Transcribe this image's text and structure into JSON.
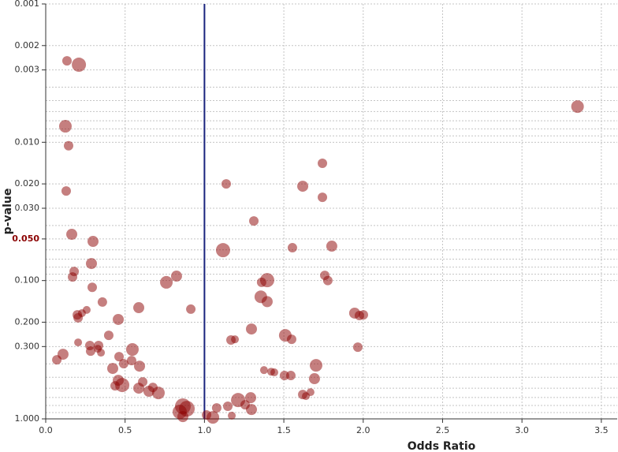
{
  "chart_data": {
    "type": "scatter",
    "x_label": "Odds Ratio",
    "y_label": "p-value",
    "log_y": true,
    "grid": true,
    "color": "#8b0000",
    "opacity": 0.5,
    "reference_line_x": 1,
    "reference_line_color": "#1a237e",
    "highlight_ytick": 0.05,
    "highlight_color": "#8b0000",
    "xlim": [
      0,
      3.6
    ],
    "ylim": [
      1,
      0.001
    ],
    "xticks": [
      {
        "value": 0,
        "label": "0.0"
      },
      {
        "value": 0.5,
        "label": "0.5"
      },
      {
        "value": 1,
        "label": "1.0"
      },
      {
        "value": 1.5,
        "label": "1.5"
      },
      {
        "value": 2,
        "label": "2.0"
      },
      {
        "value": 2.5,
        "label": "2.5"
      },
      {
        "value": 3,
        "label": "3.0"
      },
      {
        "value": 3.5,
        "label": "3.5"
      }
    ],
    "yticks": [
      {
        "value": 0.001,
        "label": "0.001"
      },
      {
        "value": 0.002,
        "label": "0.002"
      },
      {
        "value": 0.003,
        "label": "0.003"
      },
      {
        "value": 0.01,
        "label": "0.010"
      },
      {
        "value": 0.02,
        "label": "0.020"
      },
      {
        "value": 0.03,
        "label": "0.030"
      },
      {
        "value": 0.05,
        "label": "0.050"
      },
      {
        "value": 0.1,
        "label": "0.100"
      },
      {
        "value": 0.2,
        "label": "0.200"
      },
      {
        "value": 0.3,
        "label": "0.300"
      },
      {
        "value": 1,
        "label": "1.000"
      }
    ],
    "minor_yticks": [
      0.004,
      0.005,
      0.006,
      0.007,
      0.008,
      0.009,
      0.04,
      0.06,
      0.07,
      0.08,
      0.09,
      0.4,
      0.5,
      0.6,
      0.7,
      0.8,
      0.9
    ],
    "x": [
      0.134,
      0.209,
      3.35,
      0.124,
      0.144,
      1.743,
      1.137,
      1.619,
      0.129,
      1.743,
      1.311,
      0.164,
      0.298,
      1.117,
      1.554,
      1.802,
      0.288,
      0.179,
      0.169,
      0.824,
      0.76,
      1.758,
      1.777,
      1.36,
      1.395,
      0.293,
      1.355,
      1.395,
      0.357,
      0.586,
      0.914,
      0.258,
      0.228,
      0.199,
      0.204,
      1.946,
      1.976,
      2.001,
      0.457,
      1.296,
      0.397,
      1.509,
      1.549,
      1.167,
      1.192,
      0.204,
      0.546,
      0.278,
      0.333,
      0.283,
      0.328,
      0.348,
      1.966,
      0.109,
      0.07,
      0.462,
      0.541,
      0.491,
      0.422,
      0.591,
      1.703,
      1.375,
      1.42,
      1.44,
      1.504,
      1.544,
      1.693,
      0.457,
      0.482,
      0.611,
      0.437,
      0.586,
      0.65,
      0.71,
      0.675,
      1.619,
      1.668,
      1.639,
      1.291,
      1.212,
      1.256,
      1.147,
      1.077,
      1.296,
      0.864,
      0.889,
      0.844,
      0.864,
      1.013,
      1.053,
      1.172
    ],
    "values": [
      0.00258,
      0.00275,
      0.00552,
      0.00766,
      0.0106,
      0.0142,
      0.02,
      0.0208,
      0.0225,
      0.025,
      0.0371,
      0.0463,
      0.0521,
      0.0603,
      0.0579,
      0.0564,
      0.0753,
      0.0859,
      0.0942,
      0.0929,
      0.103,
      0.0917,
      0.1,
      0.103,
      0.0993,
      0.112,
      0.131,
      0.142,
      0.143,
      0.157,
      0.161,
      0.163,
      0.172,
      0.177,
      0.186,
      0.172,
      0.179,
      0.177,
      0.191,
      0.224,
      0.249,
      0.249,
      0.266,
      0.269,
      0.266,
      0.28,
      0.315,
      0.295,
      0.295,
      0.324,
      0.311,
      0.332,
      0.303,
      0.341,
      0.374,
      0.355,
      0.379,
      0.399,
      0.432,
      0.416,
      0.41,
      0.444,
      0.456,
      0.461,
      0.486,
      0.486,
      0.512,
      0.526,
      0.569,
      0.54,
      0.577,
      0.6,
      0.632,
      0.649,
      0.592,
      0.667,
      0.641,
      0.684,
      0.703,
      0.731,
      0.791,
      0.811,
      0.833,
      0.856,
      0.811,
      0.845,
      0.89,
      0.963,
      0.937,
      0.975,
      0.947
    ],
    "sizes": [
      6,
      9,
      8,
      8,
      6,
      6,
      6,
      7,
      6,
      6,
      6,
      7,
      7,
      9,
      6,
      7,
      7,
      6,
      6,
      7,
      8,
      6,
      6,
      6,
      9,
      6,
      8,
      7,
      6,
      7,
      6,
      5,
      5,
      6,
      6,
      7,
      6,
      6,
      7,
      7,
      6,
      8,
      6,
      6,
      5,
      5,
      8,
      6,
      6,
      6,
      5,
      5,
      6,
      7,
      6,
      6,
      6,
      6,
      7,
      7,
      8,
      5,
      5,
      5,
      6,
      6,
      7,
      7,
      9,
      6,
      6,
      7,
      7,
      8,
      6,
      6,
      5,
      5,
      7,
      9,
      6,
      6,
      6,
      7,
      10,
      10,
      9,
      7,
      6,
      8,
      5
    ]
  }
}
